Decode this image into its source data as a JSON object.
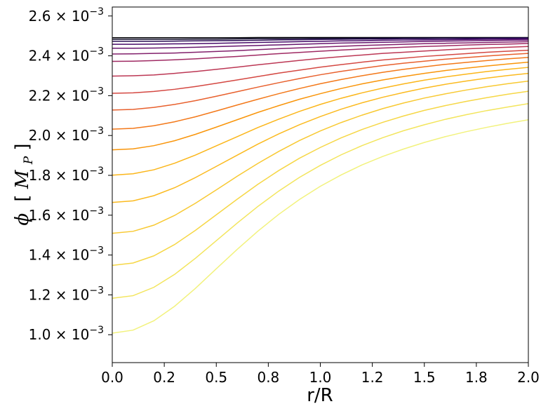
{
  "chart_data": {
    "type": "line",
    "xlabel": "r/R",
    "ylabel_symbol": "ϕ",
    "ylabel_unit_open": "[",
    "ylabel_unit_main": "M",
    "ylabel_unit_sub": "P",
    "ylabel_unit_close": "]",
    "xlim": [
      0.0,
      2.0
    ],
    "ylim": [
      0.00086,
      0.002645
    ],
    "xticks": [
      "0.0",
      "0.2",
      "0.5",
      "0.8",
      "1.0",
      "1.2",
      "1.5",
      "1.8",
      "2.0"
    ],
    "xtick_values": [
      0.0,
      0.25,
      0.5,
      0.75,
      1.0,
      1.25,
      1.5,
      1.75,
      2.0
    ],
    "yticks": [
      {
        "value": 0.001,
        "mantissa": "1.0",
        "times": "×",
        "base": "10",
        "exponent": "−3"
      },
      {
        "value": 0.0012,
        "mantissa": "1.2",
        "times": "×",
        "base": "10",
        "exponent": "−3"
      },
      {
        "value": 0.0014,
        "mantissa": "1.4",
        "times": "×",
        "base": "10",
        "exponent": "−3"
      },
      {
        "value": 0.0016,
        "mantissa": "1.6",
        "times": "×",
        "base": "10",
        "exponent": "−3"
      },
      {
        "value": 0.0018,
        "mantissa": "1.8",
        "times": "×",
        "base": "10",
        "exponent": "−3"
      },
      {
        "value": 0.002,
        "mantissa": "2.0",
        "times": "×",
        "base": "10",
        "exponent": "−3"
      },
      {
        "value": 0.0022,
        "mantissa": "2.2",
        "times": "×",
        "base": "10",
        "exponent": "−3"
      },
      {
        "value": 0.0024,
        "mantissa": "2.4",
        "times": "×",
        "base": "10",
        "exponent": "−3"
      },
      {
        "value": 0.0026,
        "mantissa": "2.6",
        "times": "×",
        "base": "10",
        "exponent": "−3"
      }
    ],
    "grid": false,
    "colormap": "inferno",
    "x": [
      0.0,
      0.1,
      0.2,
      0.3,
      0.4,
      0.5,
      0.6,
      0.7,
      0.8,
      0.9,
      1.0,
      1.1,
      1.2,
      1.3,
      1.4,
      1.5,
      1.6,
      1.7,
      1.8,
      1.9,
      2.0
    ],
    "series": [
      {
        "color": "#000004",
        "values": [
          0.002491,
          0.002491,
          0.002491,
          0.002491,
          0.002491,
          0.002491,
          0.002491,
          0.002492,
          0.002492,
          0.002492,
          0.002492,
          0.002492,
          0.002492,
          0.002492,
          0.002492,
          0.002492,
          0.002492,
          0.002492,
          0.002492,
          0.002492,
          0.002492
        ]
      },
      {
        "color": "#0d0829",
        "values": [
          0.002483,
          0.002483,
          0.002483,
          0.002483,
          0.002484,
          0.002484,
          0.002485,
          0.002486,
          0.002486,
          0.002487,
          0.002488,
          0.002488,
          0.002489,
          0.002489,
          0.002489,
          0.00249,
          0.00249,
          0.00249,
          0.00249,
          0.002491,
          0.002491
        ]
      },
      {
        "color": "#280b53",
        "values": [
          0.002473,
          0.002473,
          0.002473,
          0.002474,
          0.002475,
          0.002476,
          0.002477,
          0.002478,
          0.00248,
          0.002481,
          0.002482,
          0.002483,
          0.002484,
          0.002485,
          0.002486,
          0.002486,
          0.002487,
          0.002487,
          0.002488,
          0.002488,
          0.002489
        ]
      },
      {
        "color": "#470b6a",
        "values": [
          0.002458,
          0.002458,
          0.002459,
          0.00246,
          0.002461,
          0.002463,
          0.002465,
          0.002467,
          0.002469,
          0.002471,
          0.002473,
          0.002475,
          0.002476,
          0.002478,
          0.002479,
          0.00248,
          0.002481,
          0.002482,
          0.002483,
          0.002484,
          0.002485
        ]
      },
      {
        "color": "#65156e",
        "values": [
          0.002438,
          0.002438,
          0.002439,
          0.002441,
          0.002443,
          0.002446,
          0.002449,
          0.002452,
          0.002455,
          0.002458,
          0.002461,
          0.002464,
          0.002466,
          0.002468,
          0.00247,
          0.002472,
          0.002474,
          0.002475,
          0.002477,
          0.002478,
          0.002479
        ]
      },
      {
        "color": "#82206c",
        "values": [
          0.002409,
          0.00241,
          0.002412,
          0.002414,
          0.002418,
          0.002422,
          0.002426,
          0.002431,
          0.002436,
          0.00244,
          0.002444,
          0.002448,
          0.002452,
          0.002455,
          0.002458,
          0.002461,
          0.002463,
          0.002465,
          0.002467,
          0.002469,
          0.002471
        ]
      },
      {
        "color": "#9f2a63",
        "values": [
          0.002372,
          0.002373,
          0.002376,
          0.00238,
          0.002385,
          0.002391,
          0.002397,
          0.002404,
          0.002411,
          0.002417,
          0.002423,
          0.002429,
          0.002434,
          0.002439,
          0.002443,
          0.002447,
          0.00245,
          0.002454,
          0.002457,
          0.002459,
          0.002462
        ]
      },
      {
        "color": "#bc3754",
        "values": [
          0.002298,
          0.0023,
          0.002304,
          0.002312,
          0.002321,
          0.002332,
          0.002343,
          0.002355,
          0.002366,
          0.002377,
          0.002387,
          0.002396,
          0.002404,
          0.002412,
          0.002418,
          0.002424,
          0.00243,
          0.002435,
          0.002439,
          0.002443,
          0.002447
        ]
      },
      {
        "color": "#d44842",
        "values": [
          0.002212,
          0.002214,
          0.002221,
          0.002232,
          0.002246,
          0.002262,
          0.002279,
          0.002296,
          0.002313,
          0.002328,
          0.002343,
          0.002356,
          0.002368,
          0.002379,
          0.002388,
          0.002397,
          0.002404,
          0.002411,
          0.002418,
          0.002423,
          0.002428
        ]
      },
      {
        "color": "#e8602d",
        "values": [
          0.002128,
          0.002131,
          0.002141,
          0.002156,
          0.002175,
          0.002197,
          0.00222,
          0.002243,
          0.002265,
          0.002286,
          0.002305,
          0.002322,
          0.002337,
          0.002351,
          0.002363,
          0.002373,
          0.002383,
          0.002391,
          0.002399,
          0.002406,
          0.002412
        ]
      },
      {
        "color": "#f37819",
        "values": [
          0.002032,
          0.002036,
          0.002049,
          0.002069,
          0.002094,
          0.002123,
          0.002153,
          0.002182,
          0.00221,
          0.002236,
          0.00226,
          0.002281,
          0.0023,
          0.002317,
          0.002332,
          0.002345,
          0.002357,
          0.002367,
          0.002376,
          0.002385,
          0.002392
        ]
      },
      {
        "color": "#f9950a",
        "values": [
          0.001928,
          0.001933,
          0.001949,
          0.001974,
          0.002006,
          0.002042,
          0.002079,
          0.002116,
          0.00215,
          0.002182,
          0.00221,
          0.002236,
          0.002259,
          0.002279,
          0.002296,
          0.002312,
          0.002326,
          0.002338,
          0.002349,
          0.002359,
          0.002368
        ]
      },
      {
        "color": "#fbb61a",
        "values": [
          0.001801,
          0.001808,
          0.001828,
          0.001861,
          0.001902,
          0.001948,
          0.001994,
          0.00204,
          0.002082,
          0.002121,
          0.002156,
          0.002187,
          0.002214,
          0.002238,
          0.002259,
          0.002278,
          0.002294,
          0.002308,
          0.002321,
          0.002332,
          0.002342
        ]
      },
      {
        "color": "#fbba1f",
        "values": [
          0.001664,
          0.001672,
          0.001698,
          0.001738,
          0.001789,
          0.001845,
          0.001901,
          0.001957,
          0.002008,
          0.002054,
          0.002095,
          0.002132,
          0.002164,
          0.002192,
          0.002216,
          0.002238,
          0.002257,
          0.002273,
          0.002288,
          0.002301,
          0.002312
        ]
      },
      {
        "color": "#f8c932",
        "values": [
          0.001509,
          0.001519,
          0.00155,
          0.001599,
          0.00166,
          0.001727,
          0.001795,
          0.00186,
          0.00192,
          0.001975,
          0.002023,
          0.002065,
          0.002102,
          0.002135,
          0.002163,
          0.002188,
          0.002209,
          0.002228,
          0.002245,
          0.00226,
          0.002273
        ]
      },
      {
        "color": "#f6d746",
        "values": [
          0.001348,
          0.00136,
          0.001396,
          0.001453,
          0.001524,
          0.001602,
          0.00168,
          0.001755,
          0.001824,
          0.001886,
          0.00194,
          0.001988,
          0.00203,
          0.002066,
          0.002098,
          0.002126,
          0.00215,
          0.002171,
          0.00219,
          0.002207,
          0.002222
        ]
      },
      {
        "color": "#f3e55d",
        "values": [
          0.001183,
          0.001196,
          0.001238,
          0.001303,
          0.001384,
          0.001472,
          0.00156,
          0.001644,
          0.001721,
          0.00179,
          0.00185,
          0.001903,
          0.001949,
          0.001989,
          0.002024,
          0.002054,
          0.002081,
          0.002104,
          0.002125,
          0.002143,
          0.00216
        ]
      },
      {
        "color": "#f2f27d",
        "values": [
          0.001008,
          0.001023,
          0.00107,
          0.001143,
          0.001233,
          0.001331,
          0.001428,
          0.00152,
          0.001604,
          0.001679,
          0.001745,
          0.001802,
          0.001852,
          0.001895,
          0.001932,
          0.001965,
          0.001994,
          0.002019,
          0.002041,
          0.002061,
          0.002079
        ]
      }
    ]
  }
}
